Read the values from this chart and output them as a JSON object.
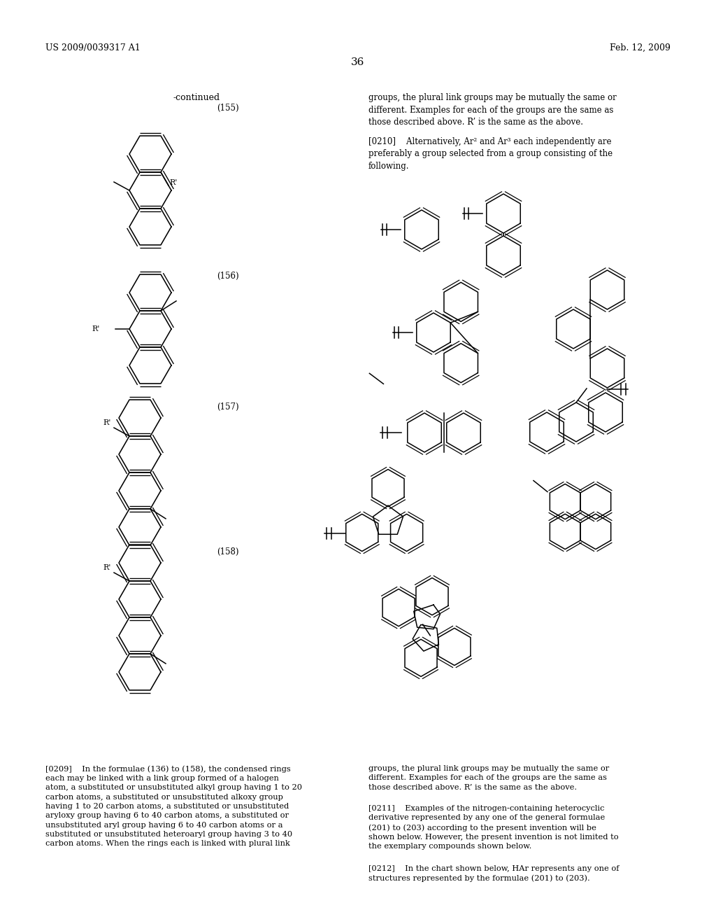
{
  "bg_color": "#ffffff",
  "header_left": "US 2009/0039317 A1",
  "header_right": "Feb. 12, 2009",
  "page_number": "36",
  "continued_label": "-continued",
  "label_155": "(155)",
  "label_156": "(156)",
  "label_157": "(157)",
  "label_158": "(158)"
}
